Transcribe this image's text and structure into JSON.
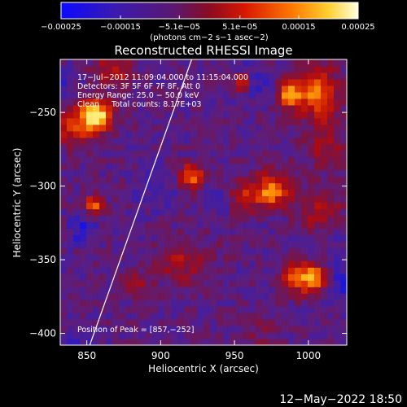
{
  "chart_data": {
    "type": "heatmap",
    "title": "Reconstructed RHESSI Image",
    "xlabel": "Heliocentric X (arcsec)",
    "ylabel": "Heliocentric Y (arcsec)",
    "xlim": [
      832,
      1026
    ],
    "ylim": [
      -408,
      -214
    ],
    "x_ticks": [
      850,
      900,
      950,
      1000
    ],
    "x_tick_labels": [
      "850",
      "900",
      "950",
      "1000"
    ],
    "y_ticks": [
      -250,
      -300,
      -350,
      -400
    ],
    "y_tick_labels": [
      "−250",
      "−300",
      "−350",
      "−400"
    ],
    "colorbar": {
      "range": [
        -0.00025,
        0.00025
      ],
      "ticks": [
        -0.00025,
        -0.00015,
        -5.1e-05,
        5.1e-05,
        0.00015,
        0.00025
      ],
      "tick_labels": [
        "−0.00025",
        "−0.00015",
        "−5.1e−05",
        "5.1e−05",
        "0.00015",
        "0.00025"
      ],
      "unit_label": "(photons cm−2 s−1 asec−2)"
    },
    "annotations": [
      "17−Jul−2012 11:09:04.000 to 11:15:04.000",
      "Detectors: 3F 5F 6F 7F 8F, Att 0",
      "Energy Range: 25.0 − 50.0 keV",
      "Clean     Total counts: 8.17E+03"
    ],
    "peak_label": "Position of Peak = [857,−252]",
    "peak_position": [
      857,
      -252
    ],
    "limb_line": {
      "x": [
        852,
        921
      ],
      "y": [
        -408,
        -214
      ]
    },
    "footer": "12−May−2022 18:50"
  }
}
